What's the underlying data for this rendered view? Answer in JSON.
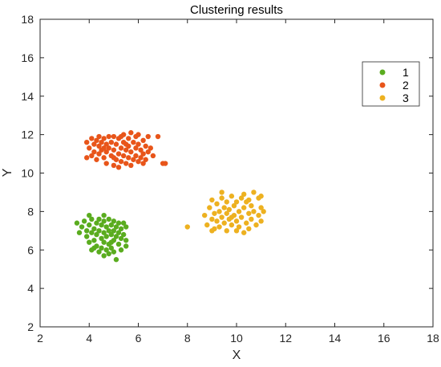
{
  "chart_data": {
    "type": "scatter",
    "title": "Clustering results",
    "xlabel": "X",
    "ylabel": "Y",
    "xlim": [
      2,
      18
    ],
    "ylim": [
      2,
      18
    ],
    "xticks": [
      2,
      4,
      6,
      8,
      10,
      12,
      14,
      16,
      18
    ],
    "yticks": [
      2,
      4,
      6,
      8,
      10,
      12,
      14,
      16,
      18
    ],
    "grid": false,
    "legend_position": "top-right",
    "series": [
      {
        "name": "1",
        "color": "#5aac1f",
        "points": [
          [
            3.5,
            7.4
          ],
          [
            3.7,
            7.2
          ],
          [
            3.8,
            7.5
          ],
          [
            3.9,
            7.0
          ],
          [
            3.9,
            6.7
          ],
          [
            4.0,
            7.3
          ],
          [
            4.0,
            6.4
          ],
          [
            4.1,
            7.6
          ],
          [
            4.1,
            6.9
          ],
          [
            4.1,
            6.0
          ],
          [
            4.2,
            7.1
          ],
          [
            4.2,
            6.5
          ],
          [
            4.3,
            7.4
          ],
          [
            4.3,
            6.8
          ],
          [
            4.3,
            6.2
          ],
          [
            4.4,
            7.6
          ],
          [
            4.4,
            7.0
          ],
          [
            4.4,
            5.9
          ],
          [
            4.5,
            7.3
          ],
          [
            4.5,
            6.6
          ],
          [
            4.5,
            6.1
          ],
          [
            4.6,
            7.5
          ],
          [
            4.6,
            6.9
          ],
          [
            4.6,
            6.4
          ],
          [
            4.6,
            5.7
          ],
          [
            4.7,
            7.2
          ],
          [
            4.7,
            6.7
          ],
          [
            4.7,
            6.0
          ],
          [
            4.8,
            7.6
          ],
          [
            4.8,
            7.0
          ],
          [
            4.8,
            6.3
          ],
          [
            4.8,
            5.8
          ],
          [
            4.9,
            7.3
          ],
          [
            4.9,
            6.8
          ],
          [
            4.9,
            6.1
          ],
          [
            5.0,
            7.5
          ],
          [
            5.0,
            7.0
          ],
          [
            5.0,
            6.5
          ],
          [
            5.0,
            5.9
          ],
          [
            5.1,
            7.2
          ],
          [
            5.1,
            6.7
          ],
          [
            5.1,
            5.5
          ],
          [
            5.2,
            7.4
          ],
          [
            5.2,
            6.9
          ],
          [
            5.2,
            6.3
          ],
          [
            5.3,
            7.1
          ],
          [
            5.3,
            6.6
          ],
          [
            5.3,
            6.0
          ],
          [
            5.4,
            7.4
          ],
          [
            5.4,
            6.8
          ],
          [
            5.5,
            7.2
          ],
          [
            5.5,
            6.5
          ],
          [
            5.5,
            6.2
          ],
          [
            4.0,
            7.8
          ],
          [
            4.6,
            7.8
          ],
          [
            3.6,
            6.9
          ],
          [
            4.2,
            6.1
          ],
          [
            4.9,
            6.4
          ]
        ]
      },
      {
        "name": "2",
        "color": "#e8551a",
        "points": [
          [
            3.9,
            11.6
          ],
          [
            3.9,
            10.8
          ],
          [
            4.0,
            11.3
          ],
          [
            4.1,
            11.8
          ],
          [
            4.2,
            11.5
          ],
          [
            4.2,
            11.1
          ],
          [
            4.3,
            11.7
          ],
          [
            4.3,
            10.7
          ],
          [
            4.4,
            11.4
          ],
          [
            4.4,
            11.0
          ],
          [
            4.5,
            11.6
          ],
          [
            4.5,
            11.2
          ],
          [
            4.6,
            11.8
          ],
          [
            4.6,
            10.8
          ],
          [
            4.7,
            11.5
          ],
          [
            4.7,
            11.1
          ],
          [
            4.7,
            10.5
          ],
          [
            4.8,
            11.9
          ],
          [
            4.8,
            11.3
          ],
          [
            4.9,
            11.6
          ],
          [
            4.9,
            10.9
          ],
          [
            5.0,
            11.2
          ],
          [
            5.0,
            10.4
          ],
          [
            5.0,
            11.9
          ],
          [
            5.1,
            11.5
          ],
          [
            5.1,
            10.7
          ],
          [
            5.2,
            11.8
          ],
          [
            5.2,
            11.0
          ],
          [
            5.2,
            10.3
          ],
          [
            5.3,
            11.3
          ],
          [
            5.3,
            10.6
          ],
          [
            5.4,
            12.0
          ],
          [
            5.4,
            11.6
          ],
          [
            5.4,
            10.9
          ],
          [
            5.5,
            11.2
          ],
          [
            5.5,
            10.5
          ],
          [
            5.6,
            11.8
          ],
          [
            5.6,
            11.4
          ],
          [
            5.6,
            10.8
          ],
          [
            5.7,
            12.1
          ],
          [
            5.7,
            11.1
          ],
          [
            5.7,
            10.4
          ],
          [
            5.8,
            11.6
          ],
          [
            5.8,
            10.7
          ],
          [
            5.9,
            11.3
          ],
          [
            5.9,
            10.9
          ],
          [
            6.0,
            12.0
          ],
          [
            6.0,
            11.5
          ],
          [
            6.0,
            10.6
          ],
          [
            6.1,
            11.2
          ],
          [
            6.1,
            10.8
          ],
          [
            6.2,
            11.7
          ],
          [
            6.2,
            11.0
          ],
          [
            6.3,
            11.4
          ],
          [
            6.3,
            10.7
          ],
          [
            6.4,
            11.9
          ],
          [
            6.4,
            11.1
          ],
          [
            6.5,
            11.3
          ],
          [
            6.6,
            10.9
          ],
          [
            6.8,
            11.9
          ],
          [
            7.0,
            10.5
          ],
          [
            7.1,
            10.5
          ],
          [
            4.1,
            10.9
          ],
          [
            4.6,
            11.3
          ],
          [
            5.3,
            11.9
          ],
          [
            5.9,
            11.9
          ],
          [
            6.2,
            10.5
          ],
          [
            4.4,
            11.9
          ],
          [
            5.5,
            11.5
          ],
          [
            5.0,
            10.8
          ]
        ]
      },
      {
        "name": "3",
        "color": "#edb120",
        "points": [
          [
            8.0,
            7.2
          ],
          [
            8.7,
            7.8
          ],
          [
            8.8,
            7.3
          ],
          [
            8.9,
            8.2
          ],
          [
            9.0,
            7.6
          ],
          [
            9.0,
            8.6
          ],
          [
            9.1,
            7.9
          ],
          [
            9.1,
            7.1
          ],
          [
            9.2,
            8.4
          ],
          [
            9.2,
            7.5
          ],
          [
            9.3,
            8.0
          ],
          [
            9.3,
            7.2
          ],
          [
            9.4,
            8.7
          ],
          [
            9.4,
            7.7
          ],
          [
            9.5,
            8.2
          ],
          [
            9.5,
            7.4
          ],
          [
            9.6,
            8.5
          ],
          [
            9.6,
            7.9
          ],
          [
            9.6,
            7.0
          ],
          [
            9.7,
            8.1
          ],
          [
            9.7,
            7.6
          ],
          [
            9.8,
            8.8
          ],
          [
            9.8,
            7.3
          ],
          [
            9.9,
            8.3
          ],
          [
            9.9,
            7.8
          ],
          [
            10.0,
            8.5
          ],
          [
            10.0,
            7.5
          ],
          [
            10.0,
            7.0
          ],
          [
            10.1,
            8.0
          ],
          [
            10.1,
            7.2
          ],
          [
            10.2,
            8.7
          ],
          [
            10.2,
            7.7
          ],
          [
            10.3,
            8.2
          ],
          [
            10.3,
            6.9
          ],
          [
            10.4,
            8.5
          ],
          [
            10.4,
            7.4
          ],
          [
            10.5,
            7.9
          ],
          [
            10.5,
            7.1
          ],
          [
            10.6,
            8.3
          ],
          [
            10.6,
            7.6
          ],
          [
            10.7,
            9.0
          ],
          [
            10.7,
            8.0
          ],
          [
            10.8,
            7.3
          ],
          [
            10.9,
            8.7
          ],
          [
            10.9,
            7.8
          ],
          [
            11.0,
            8.2
          ],
          [
            11.0,
            7.5
          ],
          [
            11.1,
            8.0
          ],
          [
            9.4,
            9.0
          ],
          [
            10.3,
            8.9
          ],
          [
            9.0,
            7.0
          ],
          [
            11.0,
            8.8
          ],
          [
            9.8,
            7.7
          ],
          [
            10.5,
            8.6
          ]
        ]
      }
    ]
  }
}
